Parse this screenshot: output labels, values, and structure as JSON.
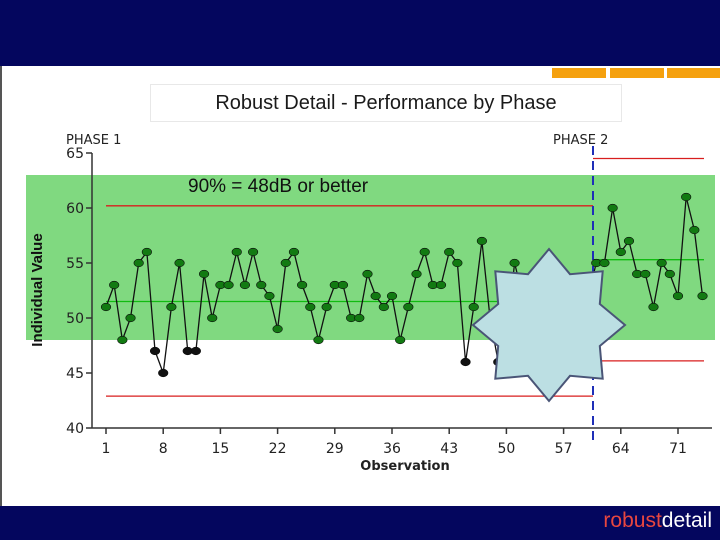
{
  "slide": {
    "title": "Robust Detail - Performance by Phase",
    "brand_part1": "robust",
    "brand_part2": "detail",
    "colors": {
      "header": "#04065e",
      "accent": "#f5a10f",
      "band": "#55cc55",
      "brand_red": "#e8463f"
    }
  },
  "chart_data": {
    "type": "line",
    "xlabel": "Observation",
    "ylabel": "Individual Value",
    "ylim": [
      40,
      65
    ],
    "xlim": [
      1,
      74
    ],
    "yticks": [
      40,
      45,
      50,
      55,
      60,
      65
    ],
    "xticks": [
      1,
      8,
      15,
      22,
      29,
      36,
      43,
      50,
      57,
      64,
      71
    ],
    "phase_labels": [
      "PHASE 1",
      "PHASE 2"
    ],
    "phase_split": 60.5,
    "annotation": "90% = 48dB or better",
    "band": [
      48,
      63
    ],
    "series": [
      {
        "x": [
          1,
          2,
          3,
          4,
          5,
          6,
          7,
          8,
          9,
          10,
          11,
          12,
          13,
          14,
          15,
          16,
          17,
          18,
          19,
          20,
          21,
          22,
          23,
          24,
          25,
          26,
          27,
          28,
          29,
          30,
          31,
          32,
          33,
          34,
          35,
          36,
          37,
          38,
          39,
          40,
          41,
          42,
          43,
          44,
          45,
          46,
          47,
          48,
          49,
          50,
          51,
          52,
          53,
          54,
          55,
          56,
          57,
          58,
          59,
          60,
          61,
          62,
          63,
          64,
          65,
          66,
          67,
          68,
          69,
          70,
          71,
          72,
          73,
          74
        ],
        "y": [
          51,
          53,
          48,
          50,
          55,
          56,
          47,
          45,
          51,
          55,
          47,
          47,
          54,
          50,
          53,
          53,
          56,
          53,
          56,
          53,
          52,
          49,
          55,
          56,
          53,
          51,
          48,
          51,
          53,
          53,
          50,
          50,
          54,
          52,
          51,
          52,
          48,
          51,
          54,
          56,
          53,
          53,
          56,
          55,
          46,
          51,
          57,
          50,
          46,
          48,
          55,
          52,
          53,
          52,
          51,
          54,
          53,
          53,
          51,
          52,
          55,
          55,
          60,
          56,
          57,
          54,
          54,
          51,
          55,
          54,
          52,
          61,
          58,
          52
        ]
      }
    ],
    "phase1": {
      "center": 51.5,
      "ucl": 60.2,
      "lcl": 42.9
    },
    "phase2": {
      "center": 55.3,
      "ucl": 64.5,
      "lcl": 46.1
    }
  }
}
